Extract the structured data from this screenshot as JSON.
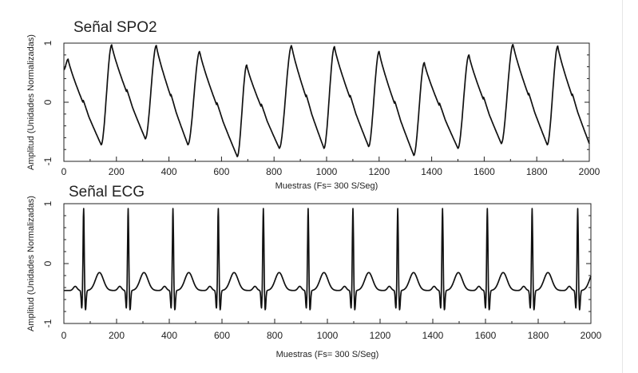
{
  "chart_data": [
    {
      "type": "line",
      "title": "Señal SPO2",
      "xlabel": "Muestras (Fs= 300 S/Seg)",
      "ylabel": "Amplitud (Unidades Normalizadas)",
      "xlim": [
        0,
        2000
      ],
      "ylim": [
        -1,
        1
      ],
      "xticks": [
        "0",
        "200",
        "400",
        "600",
        "800",
        "1000",
        "1200",
        "1400",
        "1600",
        "1800",
        "2000"
      ],
      "yticks": [
        "-1",
        "0",
        "1"
      ],
      "grid": false,
      "signal": {
        "kind": "ppg",
        "start_phase": 0.72,
        "start_value": 0.65,
        "end_value": -0.7,
        "beats": [
          {
            "min_x": 142,
            "min_y": -0.72,
            "peak_x": 182,
            "peak_y": 0.97
          },
          {
            "min_x": 310,
            "min_y": -0.62,
            "peak_x": 352,
            "peak_y": 0.96
          },
          {
            "min_x": 472,
            "min_y": -0.72,
            "peak_x": 517,
            "peak_y": 0.86
          },
          {
            "min_x": 660,
            "min_y": -0.92,
            "peak_x": 696,
            "peak_y": 0.63
          },
          {
            "min_x": 820,
            "min_y": -0.78,
            "peak_x": 867,
            "peak_y": 0.96
          },
          {
            "min_x": 990,
            "min_y": -0.78,
            "peak_x": 1030,
            "peak_y": 0.94
          },
          {
            "min_x": 1160,
            "min_y": -0.75,
            "peak_x": 1200,
            "peak_y": 0.86
          },
          {
            "min_x": 1332,
            "min_y": -0.9,
            "peak_x": 1372,
            "peak_y": 0.67
          },
          {
            "min_x": 1500,
            "min_y": -0.78,
            "peak_x": 1542,
            "peak_y": 0.8
          },
          {
            "min_x": 1665,
            "min_y": -0.7,
            "peak_x": 1710,
            "peak_y": 0.98
          },
          {
            "min_x": 1840,
            "min_y": -0.72,
            "peak_x": 1880,
            "peak_y": 0.95
          }
        ]
      }
    },
    {
      "type": "line",
      "title": "Señal ECG",
      "xlabel": "Muestras (Fs= 300 S/Seg)",
      "ylabel": "Amplitud (Unidades Normalizadas)",
      "xlim": [
        0,
        2000
      ],
      "ylim": [
        -1,
        1
      ],
      "xticks": [
        "0",
        "200",
        "400",
        "600",
        "800",
        "1000",
        "1200",
        "1400",
        "1600",
        "1800",
        "2000"
      ],
      "yticks": [
        "-1",
        "0",
        "1"
      ],
      "grid": false,
      "signal": {
        "kind": "ecg",
        "baseline": -0.45,
        "r_peak": 0.93,
        "s_min": -0.78,
        "t_peak": -0.15,
        "r_peaks_x": [
          75,
          244,
          414,
          586,
          757,
          927,
          1097,
          1267,
          1437,
          1607,
          1777,
          1950
        ]
      }
    }
  ]
}
